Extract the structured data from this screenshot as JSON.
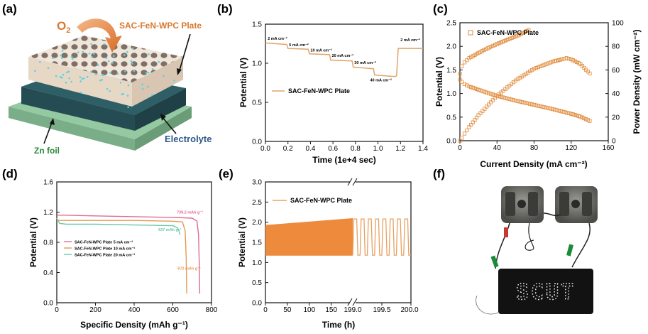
{
  "chart_data": [
    {
      "panel": "(a)",
      "type": "other",
      "labels": {
        "o2": "O",
        "o2_sub": "2",
        "plate": "SAC-FeN-WPC Plate",
        "electrolyte": "Electrolyte",
        "zn_foil": "Zn foil"
      },
      "colors": {
        "plate": "#ece0d2",
        "electrolyte": "#2f5f66",
        "zn_foil": "#8fc39d",
        "dots": "#5ad0e6",
        "accent": "#d9782f"
      }
    },
    {
      "panel": "(b)",
      "type": "line",
      "xlabel": "Time (1e+4 sec)",
      "ylabel": "Potential (V)",
      "xlim": [
        0.0,
        1.4
      ],
      "ylim": [
        0.0,
        1.5
      ],
      "xticks": [
        "0.0",
        "0.2",
        "0.4",
        "0.6",
        "0.8",
        "1.0",
        "1.2",
        "1.4"
      ],
      "yticks": [
        "0.0",
        "0.5",
        "1.0",
        "1.5"
      ],
      "legend": "SAC-FeN-WPC Plate",
      "color": "#e0a46a",
      "series": [
        {
          "name": "SAC-FeN-WPC Plate",
          "x": [
            0.0,
            0.19,
            0.2,
            0.38,
            0.39,
            0.57,
            0.58,
            0.77,
            0.78,
            0.96,
            0.97,
            1.15,
            1.165,
            1.18,
            1.4
          ],
          "y": [
            1.26,
            1.24,
            1.19,
            1.18,
            1.12,
            1.11,
            1.04,
            1.03,
            0.95,
            0.93,
            0.85,
            0.83,
            0.84,
            1.19,
            1.19
          ]
        }
      ],
      "annotations": [
        {
          "text": "2 mA cm⁻²",
          "x": 0.02,
          "y": 1.3
        },
        {
          "text": "5 mA cm⁻²",
          "x": 0.21,
          "y": 1.22
        },
        {
          "text": "10 mA cm⁻²",
          "x": 0.4,
          "y": 1.15
        },
        {
          "text": "20 mA cm⁻²",
          "x": 0.59,
          "y": 1.08
        },
        {
          "text": "30 mA cm⁻²",
          "x": 0.79,
          "y": 0.99
        },
        {
          "text": "40 mA cm⁻²",
          "x": 0.93,
          "y": 0.77
        },
        {
          "text": "2 mA cm⁻²",
          "x": 1.2,
          "y": 1.28
        }
      ]
    },
    {
      "panel": "(c)",
      "type": "scatter",
      "xlabel": "Current Density (mA cm⁻²)",
      "ylabel": "Potential (V)",
      "y2label": "Power Density (mW cm⁻²)",
      "xlim": [
        0,
        160
      ],
      "ylim": [
        0.0,
        2.5
      ],
      "y2lim": [
        0,
        100
      ],
      "xticks": [
        "0",
        "40",
        "80",
        "120",
        "160"
      ],
      "yticks": [
        "0.0",
        "0.5",
        "1.0",
        "1.5",
        "2.0",
        "2.5"
      ],
      "y2ticks": [
        "0",
        "20",
        "40",
        "60",
        "80",
        "100"
      ],
      "legend": "SAC-FeN-WPC Plate",
      "color": "#e08a3a",
      "series": [
        {
          "name": "Potential (charge branch)",
          "axis": "left",
          "x": [
            0,
            2,
            5,
            10,
            20,
            30,
            40,
            50,
            60,
            70,
            74
          ],
          "y": [
            1.3,
            1.58,
            1.66,
            1.75,
            1.86,
            1.96,
            2.05,
            2.13,
            2.21,
            2.3,
            2.35
          ]
        },
        {
          "name": "Potential (discharge branch)",
          "axis": "left",
          "x": [
            0,
            2,
            5,
            10,
            20,
            40,
            60,
            80,
            100,
            120,
            130,
            140
          ],
          "y": [
            1.42,
            1.25,
            1.2,
            1.15,
            1.08,
            0.95,
            0.85,
            0.76,
            0.67,
            0.57,
            0.51,
            0.42
          ]
        },
        {
          "name": "Power density",
          "axis": "right",
          "x": [
            0,
            2,
            5,
            10,
            20,
            40,
            60,
            80,
            100,
            110,
            115,
            120,
            130,
            140
          ],
          "y": [
            0,
            2.5,
            6,
            11.5,
            21.6,
            38,
            51,
            61,
            67,
            69,
            70,
            69,
            65,
            57
          ]
        }
      ]
    },
    {
      "panel": "(d)",
      "type": "line",
      "xlabel": "Specific Density (mAh g⁻¹)",
      "ylabel": "Potential (V)",
      "xlim": [
        0,
        800
      ],
      "ylim": [
        0.0,
        1.6
      ],
      "xticks": [
        "0",
        "200",
        "400",
        "600",
        "800"
      ],
      "yticks": [
        "0.0",
        "0.4",
        "0.8",
        "1.2",
        "1.6"
      ],
      "series": [
        {
          "name": "SAC-FeN-WPC Plate  5  mA cm⁻²",
          "color": "#e06c96",
          "x": [
            0,
            40,
            200,
            400,
            600,
            700,
            725,
            733,
            737,
            739
          ],
          "y": [
            1.16,
            1.16,
            1.15,
            1.14,
            1.13,
            1.12,
            1.08,
            0.9,
            0.5,
            0.12
          ]
        },
        {
          "name": "SAC-FeN-WPC Plate 10 mA cm⁻²",
          "color": "#e59a53",
          "x": [
            0,
            40,
            200,
            400,
            600,
            650,
            664,
            669,
            672
          ],
          "y": [
            1.09,
            1.09,
            1.09,
            1.09,
            1.08,
            1.07,
            0.95,
            0.6,
            0.12
          ]
        },
        {
          "name": "SAC-FeN-WPC Plate 20 mA cm⁻²",
          "color": "#6cc9a5",
          "x": [
            0,
            15,
            50,
            200,
            400,
            600,
            625,
            632,
            635,
            637
          ],
          "y": [
            1.12,
            1.05,
            1.04,
            1.04,
            1.03,
            1.02,
            0.99,
            0.95,
            0.92,
            0.9
          ]
        }
      ],
      "annotations": [
        {
          "text": "739.2 mAh g⁻¹",
          "x": 620,
          "y": 1.18,
          "color": "#e06c96"
        },
        {
          "text": "637 mAh g⁻¹",
          "x": 525,
          "y": 0.95,
          "color": "#6cc9a5"
        },
        {
          "text": "672 mAh g⁻¹",
          "x": 625,
          "y": 0.44,
          "color": "#e59a53"
        }
      ]
    },
    {
      "panel": "(e)",
      "type": "line",
      "xlabel": "Time (h)",
      "ylabel": "Potential (V)",
      "xlim": [
        0,
        200
      ],
      "ylim": [
        0.0,
        3.0
      ],
      "xticks": [
        "0",
        "50",
        "100",
        "150",
        "199.0",
        "199.5",
        "200.0"
      ],
      "yticks": [
        "0.0",
        "0.5",
        "1.0",
        "1.5",
        "2.0",
        "2.5",
        "3.0"
      ],
      "legend": "SAC-FeN-WPC Plate",
      "color": "#e8843a",
      "axis_break": 199,
      "dense_band": {
        "x": [
          0,
          199
        ],
        "upper_start": 1.93,
        "upper_end": 2.1,
        "lower": 1.17
      },
      "cycles": {
        "x_range": [
          199.0,
          200.0
        ],
        "count": 8,
        "high": 2.08,
        "low": 1.18
      }
    },
    {
      "panel": "(f)",
      "type": "other",
      "sign_text": "SCUT"
    }
  ]
}
